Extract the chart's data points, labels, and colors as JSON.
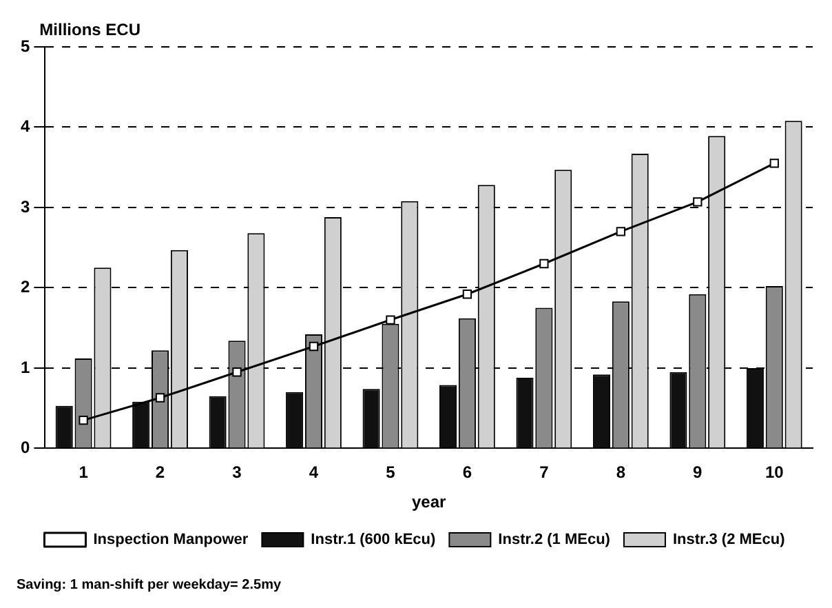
{
  "chart_data": {
    "type": "bar",
    "ylabel": "Millions ECU",
    "xlabel": "year",
    "categories": [
      "1",
      "2",
      "3",
      "4",
      "5",
      "6",
      "7",
      "8",
      "9",
      "10"
    ],
    "series": [
      {
        "name": "Instr.1 (600 kEcu)",
        "color": "#111111",
        "values": [
          0.53,
          0.58,
          0.65,
          0.7,
          0.74,
          0.79,
          0.88,
          0.92,
          0.95,
          1.0
        ]
      },
      {
        "name": "Instr.2 (1 MEcu)",
        "color": "#8a8a8a",
        "values": [
          1.12,
          1.22,
          1.34,
          1.42,
          1.55,
          1.62,
          1.75,
          1.83,
          1.92,
          2.02
        ]
      },
      {
        "name": "Instr.3 (2 MEcu)",
        "color": "#d0d0d0",
        "values": [
          2.25,
          2.47,
          2.68,
          2.88,
          3.08,
          3.28,
          3.47,
          3.67,
          3.89,
          4.08
        ]
      },
      {
        "name": "Inspection Manpower",
        "type": "line",
        "color": "#000000",
        "values": [
          0.35,
          0.63,
          0.95,
          1.27,
          1.6,
          1.92,
          2.3,
          2.7,
          3.07,
          3.55
        ]
      }
    ],
    "ylim": [
      0,
      5
    ],
    "yticks": [
      0,
      1,
      2,
      3,
      4,
      5
    ],
    "grid": "y",
    "legend": "bottom",
    "marker": "square",
    "line_style": "solid",
    "annotations": [
      "Saving: 1 man-shift per weekday= 2.5my"
    ]
  }
}
